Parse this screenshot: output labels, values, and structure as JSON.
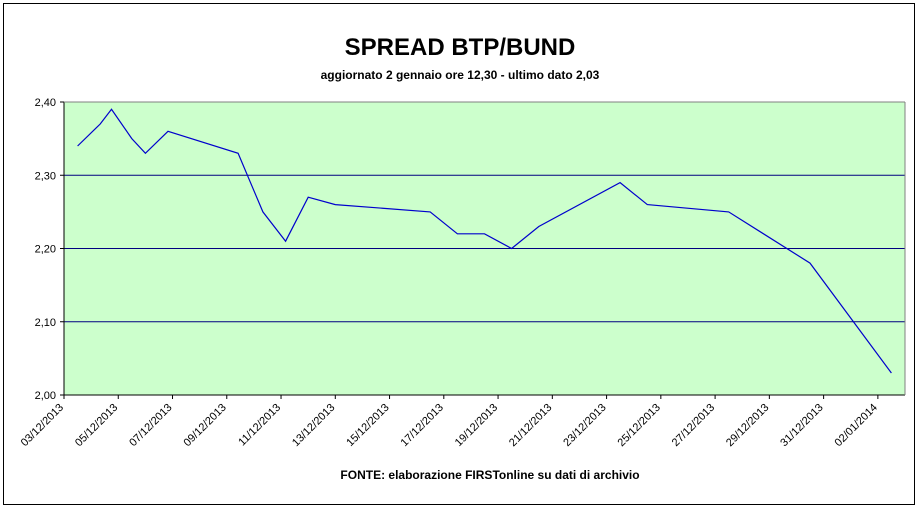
{
  "chart_data": {
    "type": "line",
    "title": "SPREAD BTP/BUND",
    "subtitle": "aggiornato 2 gennaio ore 12,30 - ultimo dato 2,03",
    "source": "FONTE: elaborazione FIRSTonline su dati di archivio",
    "xlabel": "",
    "ylabel": "",
    "ylim": [
      2.0,
      2.4
    ],
    "yticks": [
      "2,00",
      "2,10",
      "2,20",
      "2,30",
      "2,40"
    ],
    "ytick_values": [
      2.0,
      2.1,
      2.2,
      2.3,
      2.4
    ],
    "xlim": [
      "03/12/2013",
      "03/01/2014"
    ],
    "xticks": [
      "03/12/2013",
      "05/12/2013",
      "07/12/2013",
      "09/12/2013",
      "11/12/2013",
      "13/12/2013",
      "15/12/2013",
      "17/12/2013",
      "19/12/2013",
      "21/12/2013",
      "23/12/2013",
      "25/12/2013",
      "27/12/2013",
      "29/12/2013",
      "31/12/2013",
      "02/01/2014"
    ],
    "grid": true,
    "legend": "none",
    "colors": {
      "plot_background": "#ccffcc",
      "line": "#0000cc",
      "gridline": "#000080"
    },
    "series": [
      {
        "points": [
          {
            "x": "03/12/2013 12:00",
            "y": 2.34
          },
          {
            "x": "04/12/2013 08:00",
            "y": 2.37
          },
          {
            "x": "04/12/2013 18:00",
            "y": 2.39
          },
          {
            "x": "05/12/2013 12:00",
            "y": 2.35
          },
          {
            "x": "06/12/2013 00:00",
            "y": 2.33
          },
          {
            "x": "06/12/2013 20:00",
            "y": 2.36
          },
          {
            "x": "09/12/2013 10:00",
            "y": 2.33
          },
          {
            "x": "10/12/2013 08:00",
            "y": 2.25
          },
          {
            "x": "11/12/2013 04:00",
            "y": 2.21
          },
          {
            "x": "12/12/2013 00:00",
            "y": 2.27
          },
          {
            "x": "13/12/2013 00:00",
            "y": 2.26
          },
          {
            "x": "16/12/2013 12:00",
            "y": 2.25
          },
          {
            "x": "17/12/2013 12:00",
            "y": 2.22
          },
          {
            "x": "18/12/2013 12:00",
            "y": 2.22
          },
          {
            "x": "19/12/2013 12:00",
            "y": 2.2
          },
          {
            "x": "20/12/2013 12:00",
            "y": 2.23
          },
          {
            "x": "23/12/2013 12:00",
            "y": 2.29
          },
          {
            "x": "24/12/2013 12:00",
            "y": 2.26
          },
          {
            "x": "27/12/2013 12:00",
            "y": 2.25
          },
          {
            "x": "30/12/2013 12:00",
            "y": 2.18
          },
          {
            "x": "02/01/2014 12:00",
            "y": 2.03
          }
        ]
      }
    ]
  }
}
